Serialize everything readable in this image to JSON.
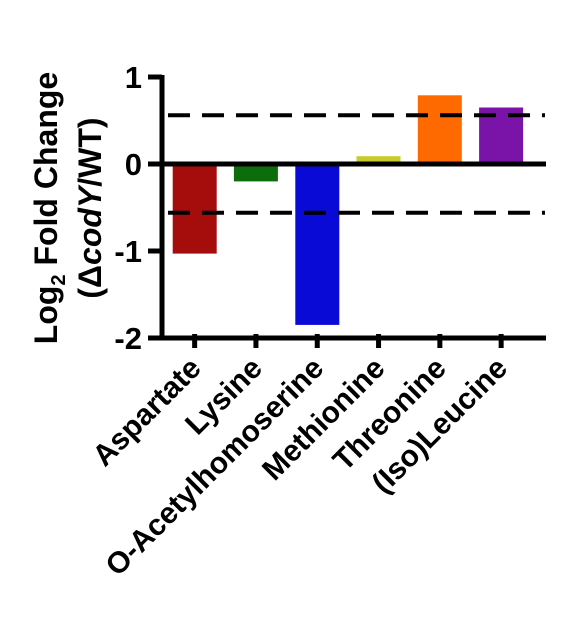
{
  "chart_data": {
    "type": "bar",
    "categories": [
      "Aspartate",
      "Lysine",
      "O-Acetylhomoserine",
      "Methionine",
      "Threonine",
      "(Iso)Leucine"
    ],
    "values": [
      -1.03,
      -0.2,
      -1.85,
      0.09,
      0.79,
      0.65
    ],
    "colors": [
      "#a50d0d",
      "#0b6e0b",
      "#0a0ad6",
      "#c7cc2b",
      "#ff6a00",
      "#7a13a8"
    ],
    "ylim": [
      -2,
      1
    ],
    "yticks": [
      "-2",
      "-1",
      "0",
      "1"
    ],
    "ylabel": {
      "line1_prefix": "Log",
      "line1_sub": "2",
      "line1_suffix": " Fold Change",
      "line2_open": "(Δ",
      "line2_italic": "codY",
      "line2_close": "/WT)"
    },
    "thresholds": [
      0.56,
      -0.56
    ],
    "threshold_style": "dashed",
    "grid": false,
    "legend": "none"
  }
}
